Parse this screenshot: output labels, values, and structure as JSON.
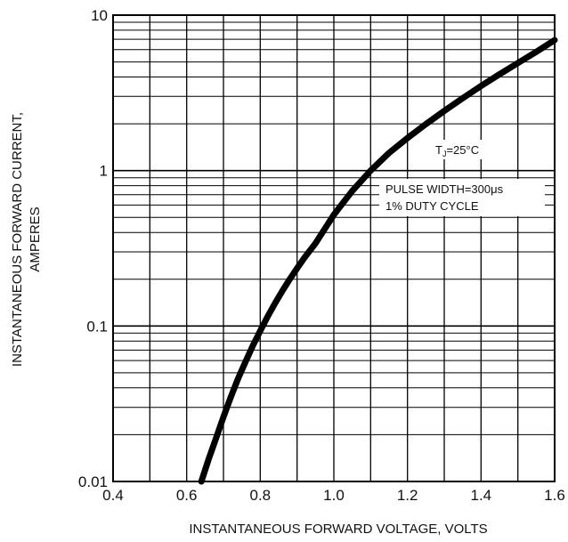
{
  "chart_data": {
    "type": "line",
    "title": "",
    "xlabel": "INSTANTANEOUS FORWARD VOLTAGE, VOLTS",
    "ylabel_lines": [
      "INSTANTANEOUS FORWARD CURRENT,",
      "AMPERES"
    ],
    "xlim": [
      0.4,
      1.6
    ],
    "ylim": [
      0.01,
      10
    ],
    "yscale": "log",
    "grid": true,
    "x_ticks": [
      0.4,
      0.6,
      0.8,
      1.0,
      1.2,
      1.4,
      1.6
    ],
    "x_tick_labels": [
      "0.4",
      "0.6",
      "0.8",
      "1.0",
      "1.2",
      "1.4",
      "1.6"
    ],
    "y_ticks": [
      0.01,
      0.1,
      1,
      10
    ],
    "y_tick_labels": [
      "0.01",
      "0.1",
      "1",
      "10"
    ],
    "series": [
      {
        "x": [
          0.64,
          0.66,
          0.68,
          0.7,
          0.72,
          0.74,
          0.76,
          0.78,
          0.8,
          0.82,
          0.84,
          0.86,
          0.88,
          0.9,
          0.92,
          0.95,
          1.0,
          1.05,
          1.1,
          1.15,
          1.2,
          1.25,
          1.3,
          1.35,
          1.4,
          1.45,
          1.5,
          1.55,
          1.6
        ],
        "y": [
          0.01,
          0.014,
          0.019,
          0.026,
          0.035,
          0.046,
          0.059,
          0.075,
          0.093,
          0.115,
          0.14,
          0.168,
          0.2,
          0.235,
          0.275,
          0.34,
          0.52,
          0.74,
          1.0,
          1.3,
          1.62,
          1.99,
          2.42,
          2.92,
          3.5,
          4.16,
          4.92,
          5.8,
          6.9
        ]
      }
    ],
    "annotations": [
      {
        "id": "tj",
        "text": "TJ=25°C"
      },
      {
        "id": "pulse",
        "lines": [
          "PULSE WIDTH=300μs",
          "1% DUTY CYCLE"
        ]
      }
    ]
  }
}
